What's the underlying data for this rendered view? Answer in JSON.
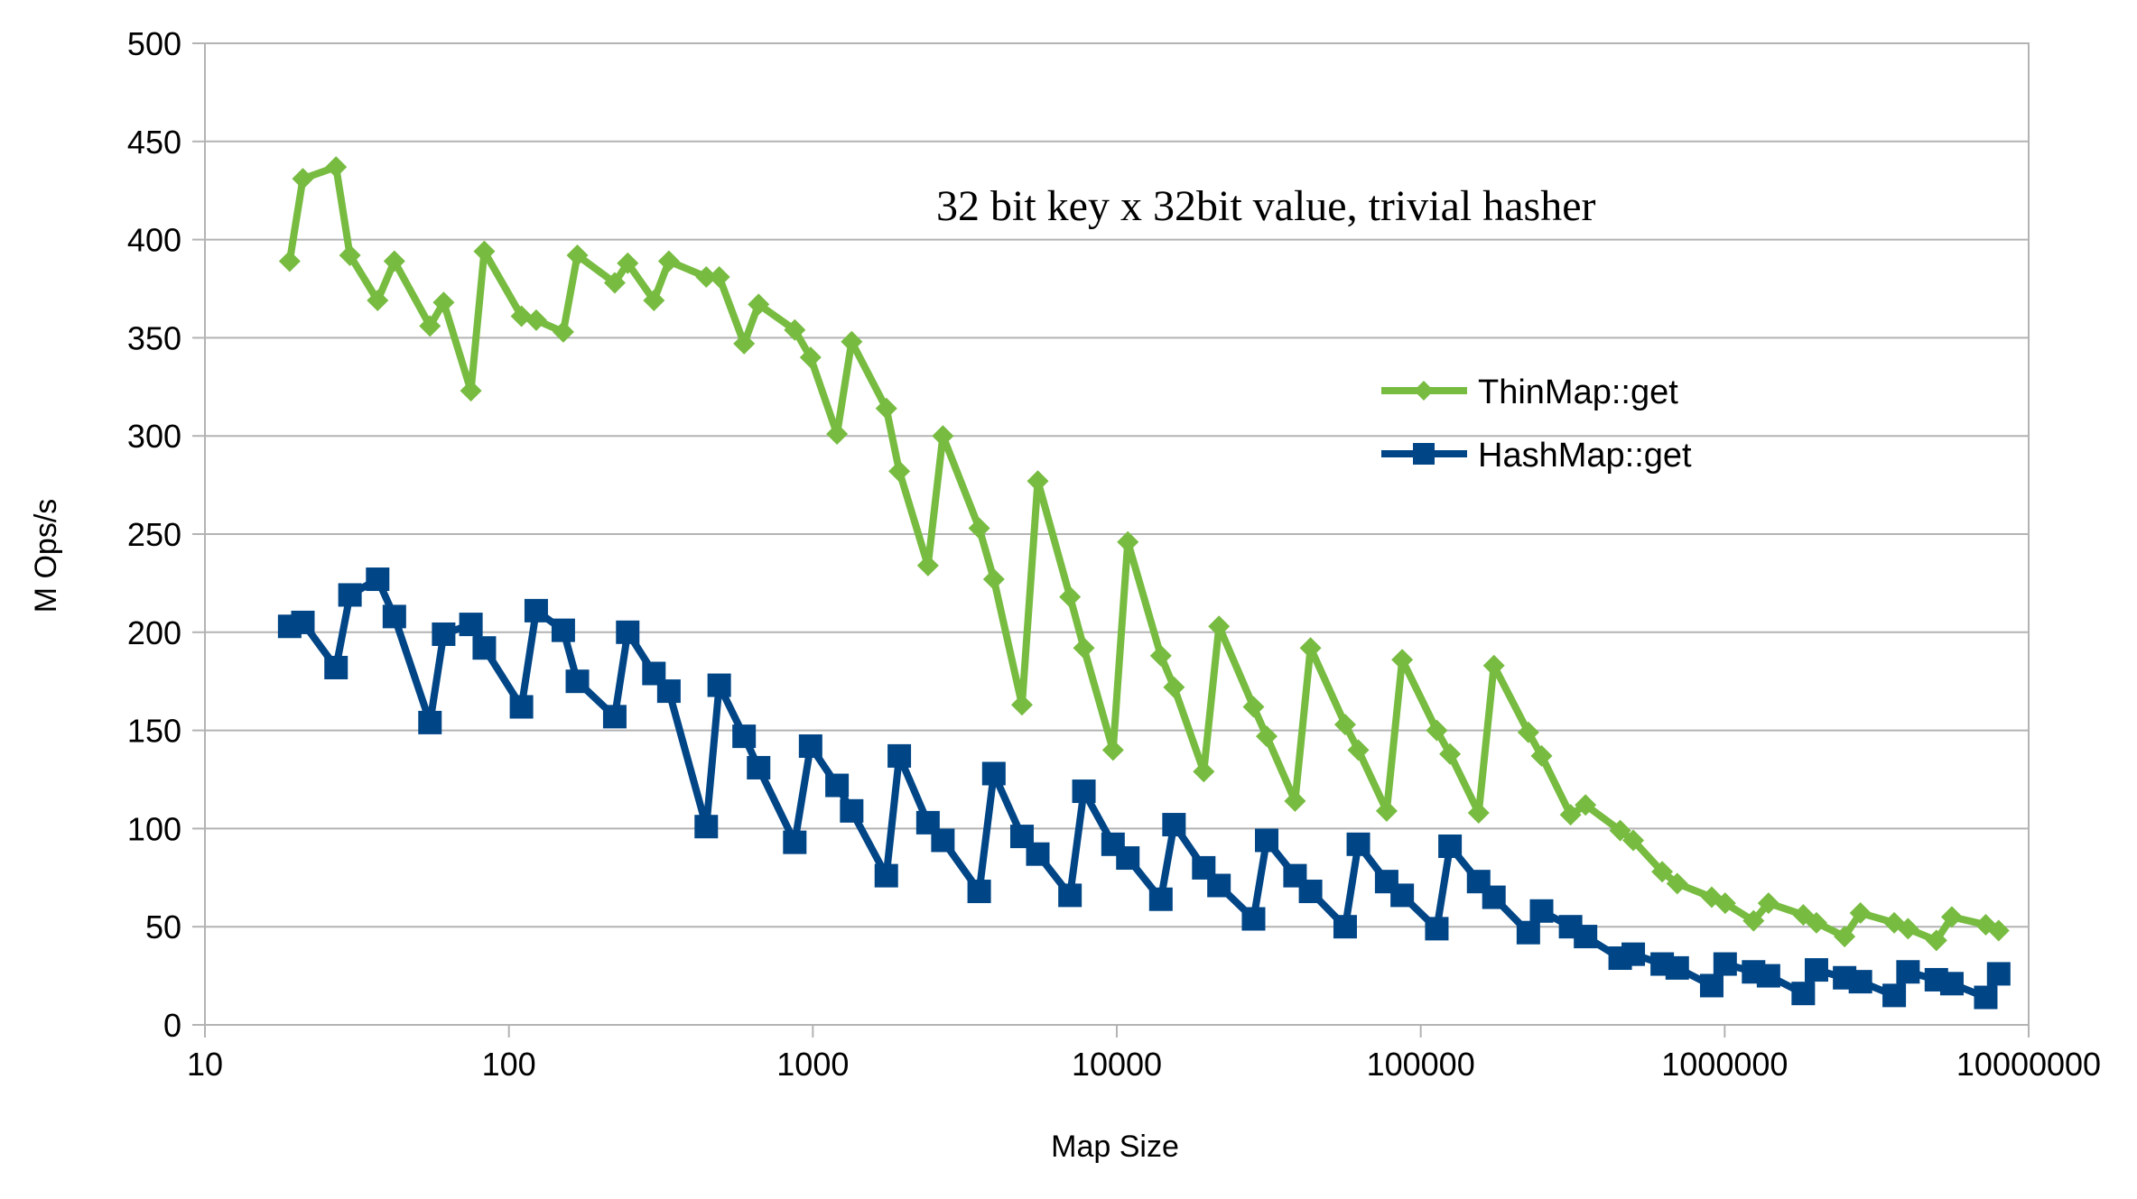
{
  "chart_data": {
    "type": "line",
    "title": "32 bit key x 32bit value, trivial hasher",
    "xlabel": "Map Size",
    "ylabel": "M Ops/s",
    "x_scale": "log",
    "xlim": [
      10,
      10000000
    ],
    "ylim": [
      0,
      500
    ],
    "x_tick_labels": [
      "10",
      "100",
      "1000",
      "10000",
      "100000",
      "1000000",
      "10000000"
    ],
    "x_ticks": [
      10,
      100,
      1000,
      10000,
      100000,
      1000000,
      10000000
    ],
    "y_ticks": [
      0,
      50,
      100,
      150,
      200,
      250,
      300,
      350,
      400,
      450,
      500
    ],
    "y_tick_labels": [
      "0",
      "50",
      "100",
      "150",
      "200",
      "250",
      "300",
      "350",
      "400",
      "450",
      "500"
    ],
    "grid": "horizontal",
    "legend_position": "right",
    "series": [
      {
        "name": "ThinMap::get",
        "color": "#77bc41",
        "marker": "diamond",
        "x": [
          19,
          21,
          27,
          30,
          37,
          42,
          55,
          61,
          75,
          83,
          110,
          123,
          151,
          168,
          223,
          246,
          300,
          336,
          446,
          492,
          594,
          663,
          872,
          983,
          1201,
          1342,
          1745,
          1925,
          2392,
          2678,
          3526,
          3940,
          4876,
          5497,
          7015,
          7793,
          9719,
          10873,
          13964,
          15424,
          19323,
          21685,
          28179,
          31124,
          38585,
          43394,
          56412,
          62318,
          77235,
          86898,
          112930,
          124842,
          155021,
          174072,
          225949,
          249778,
          311125,
          348398,
          453078,
          500245,
          622850,
          698065,
          906432,
          1003256,
          1244567,
          1393541,
          1813325,
          2003985,
          2480113,
          2795648,
          3611522,
          4009871,
          4970854,
          5589442,
          7224536,
          7968341
        ],
        "y": [
          389,
          431,
          437,
          392,
          369,
          389,
          356,
          368,
          323,
          394,
          361,
          359,
          353,
          392,
          378,
          388,
          369,
          389,
          381,
          381,
          347,
          367,
          354,
          340,
          301,
          348,
          314,
          282,
          234,
          300,
          253,
          227,
          163,
          277,
          218,
          192,
          140,
          246,
          188,
          172,
          129,
          203,
          162,
          147,
          114,
          192,
          153,
          140,
          109,
          186,
          150,
          138,
          108,
          183,
          149,
          137,
          107,
          112,
          99,
          94,
          78,
          72,
          65,
          62,
          53,
          62,
          56,
          52,
          45,
          57,
          52,
          49,
          43,
          55,
          51,
          48
        ]
      },
      {
        "name": "HashMap::get",
        "color": "#004586",
        "marker": "square",
        "x": [
          19,
          21,
          27,
          30,
          37,
          42,
          55,
          61,
          75,
          83,
          110,
          123,
          151,
          168,
          223,
          246,
          300,
          336,
          446,
          492,
          594,
          663,
          872,
          983,
          1201,
          1342,
          1745,
          1925,
          2392,
          2678,
          3526,
          3940,
          4876,
          5497,
          7015,
          7793,
          9719,
          10873,
          13964,
          15424,
          19323,
          21685,
          28179,
          31124,
          38585,
          43394,
          56412,
          62318,
          77235,
          86898,
          112930,
          124842,
          155021,
          174072,
          225949,
          249778,
          311125,
          348398,
          453078,
          500245,
          622850,
          698065,
          906432,
          1003256,
          1244567,
          1393541,
          1813325,
          2003985,
          2480113,
          2795648,
          3611522,
          4009871,
          4970854,
          5589442,
          7224536,
          7968341
        ],
        "y": [
          203,
          205,
          182,
          219,
          227,
          208,
          154,
          199,
          204,
          192,
          162,
          211,
          201,
          175,
          157,
          200,
          179,
          170,
          101,
          173,
          147,
          131,
          93,
          142,
          122,
          109,
          76,
          137,
          103,
          94,
          68,
          128,
          96,
          87,
          66,
          119,
          92,
          85,
          64,
          102,
          80,
          71,
          54,
          94,
          76,
          68,
          50,
          92,
          73,
          66,
          49,
          91,
          73,
          65,
          47,
          58,
          50,
          45,
          34,
          36,
          31,
          29,
          20,
          31,
          27,
          25,
          16,
          28,
          24,
          22,
          15,
          27,
          23,
          21,
          14,
          26
        ]
      }
    ]
  }
}
